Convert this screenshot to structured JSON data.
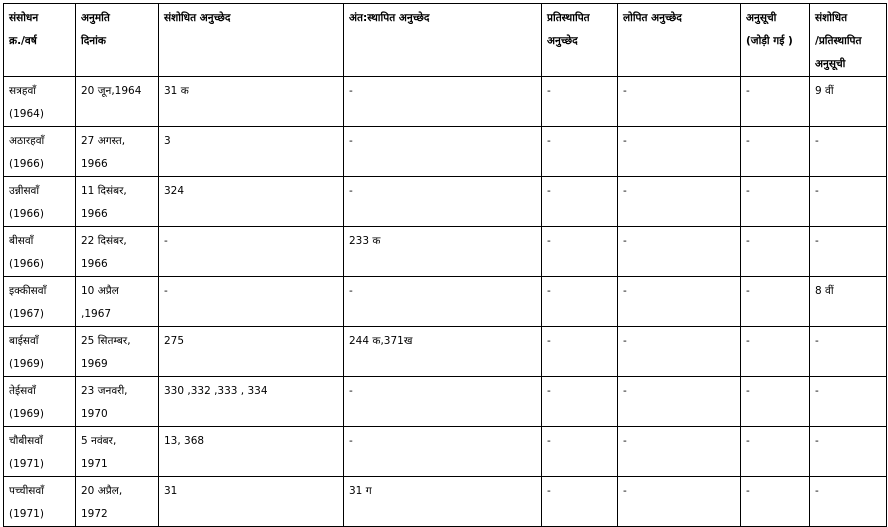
{
  "headers": [
    "संसोधन\nक्र./वर्ष",
    "अनुमति\nदिनांक",
    "संशोधित अनुच्छेद",
    "अंत:स्थापित अनुच्छेद",
    "प्रतिस्थापित\nअनुच्छेद",
    "लोपित अनुच्छेद",
    "अनुसूची\n(जोड़ी  गई  )",
    "संशोधित\n/प्रतिस्थापित\nअनुसूची"
  ],
  "rows": [
    [
      "सत्रहवाँ\n(1964)",
      "20 जून,1964",
      "31 क",
      "-",
      "-",
      "-",
      "-",
      "9 वीं"
    ],
    [
      "अठारहवाँ\n(1966)",
      "27 अगस्त,\n1966",
      "3",
      "-",
      "-",
      "-",
      "-",
      "-"
    ],
    [
      "उन्नीसवाँ\n(1966)",
      "11 दिसंबर,\n1966",
      "324",
      "-",
      "-",
      "-",
      "-",
      "-"
    ],
    [
      "बीसवाँ\n(1966)",
      "22 दिसंबर,\n1966",
      "-",
      "233 क",
      "-",
      "-",
      "-",
      "-"
    ],
    [
      "इक्कीसवाँ\n(1967)",
      "10 अप्रैल\n,1967",
      "-",
      "-",
      "-",
      "-",
      "-",
      "8 वीं"
    ],
    [
      "बाईसवाँ\n(1969)",
      "25 सितम्बर,\n1969",
      "275",
      "244 क,371ख",
      "-",
      "-",
      "-",
      "-"
    ],
    [
      "तेईसवाँ\n(1969)",
      "23 जनवरी,\n1970",
      "330 ,332 ,333 , 334",
      "-",
      "-",
      "-",
      "-",
      "-"
    ],
    [
      "चौबीसवाँ\n(1971)",
      "5 नवंबर,\n1971",
      "13, 368",
      "-",
      "-",
      "-",
      "-",
      "-"
    ],
    [
      "पच्चीसवाँ\n(1971)",
      "20 अप्रैल,\n1972",
      "31",
      "31 ग",
      "-",
      "-",
      "-",
      "-"
    ]
  ]
}
